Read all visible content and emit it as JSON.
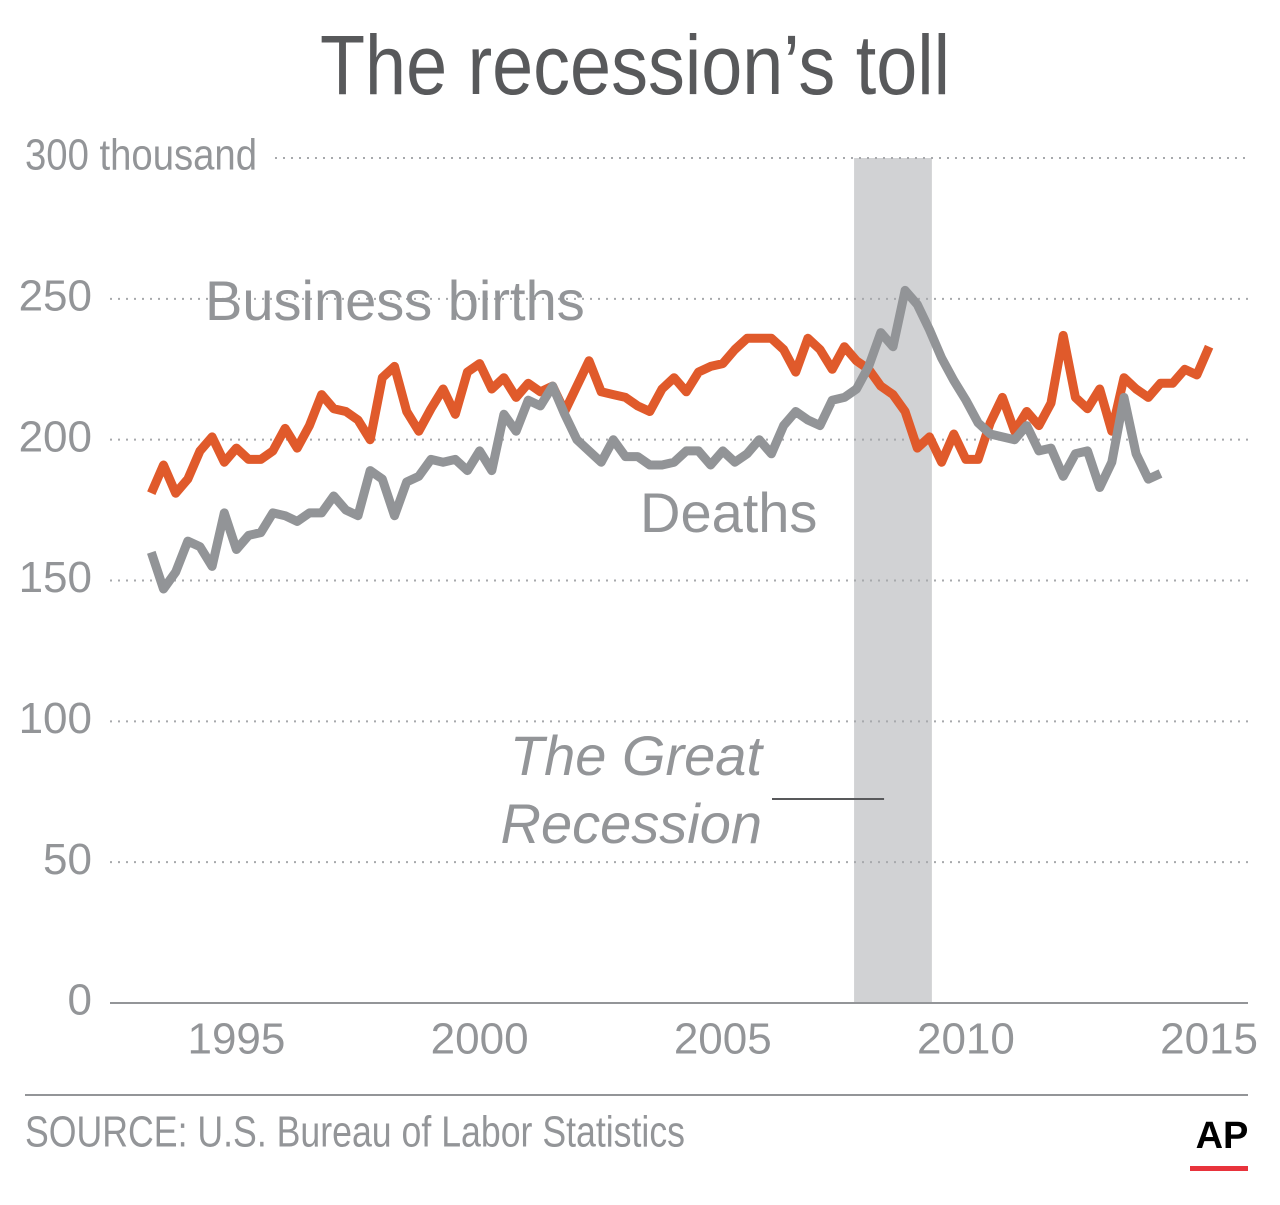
{
  "chart_data": {
    "type": "line",
    "title": "The recession’s toll",
    "source": "SOURCE: U.S. Bureau of Labor Statistics",
    "logo": "AP",
    "x": [
      1993.25,
      1993.5,
      1993.75,
      1994,
      1994.25,
      1994.5,
      1994.75,
      1995,
      1995.25,
      1995.5,
      1995.75,
      1996,
      1996.25,
      1996.5,
      1996.75,
      1997,
      1997.25,
      1997.5,
      1997.75,
      1998,
      1998.25,
      1998.5,
      1998.75,
      1999,
      1999.25,
      1999.5,
      1999.75,
      2000,
      2000.25,
      2000.5,
      2000.75,
      2001,
      2001.25,
      2001.5,
      2001.75,
      2002,
      2002.25,
      2002.5,
      2002.75,
      2003,
      2003.25,
      2003.5,
      2003.75,
      2004,
      2004.25,
      2004.5,
      2004.75,
      2005,
      2005.25,
      2005.5,
      2005.75,
      2006,
      2006.25,
      2006.5,
      2006.75,
      2007,
      2007.25,
      2007.5,
      2007.75,
      2008,
      2008.25,
      2008.5,
      2008.75,
      2009,
      2009.25,
      2009.5,
      2009.75,
      2010,
      2010.25,
      2010.5,
      2010.75,
      2011,
      2011.25,
      2011.5,
      2011.75,
      2012,
      2012.25,
      2012.5,
      2012.75,
      2013,
      2013.25,
      2013.5,
      2013.75,
      2014,
      2014.25,
      2014.5,
      2014.75,
      2015
    ],
    "series": [
      {
        "name": "Business births",
        "color": "#e05a2b",
        "values": [
          181,
          191,
          181,
          186,
          196,
          201,
          192,
          197,
          193,
          193,
          196,
          204,
          197,
          205,
          216,
          211,
          210,
          207,
          200,
          222,
          226,
          210,
          203,
          211,
          218,
          209,
          224,
          227,
          218,
          222,
          215,
          220,
          217,
          219,
          210,
          219,
          228,
          217,
          216,
          215,
          212,
          210,
          218,
          222,
          217,
          224,
          226,
          227,
          232,
          236,
          236,
          236,
          232,
          224,
          236,
          232,
          225,
          233,
          228,
          225,
          219,
          216,
          210,
          197,
          201,
          192,
          202,
          193,
          193,
          206,
          215,
          203,
          210,
          205,
          213,
          237,
          215,
          211,
          218,
          203,
          222,
          218,
          215,
          220,
          220,
          225,
          223,
          233
        ]
      },
      {
        "name": "Deaths",
        "color": "#929497",
        "values": [
          160,
          147,
          153,
          164,
          162,
          155,
          174,
          161,
          166,
          167,
          174,
          173,
          171,
          174,
          174,
          180,
          175,
          173,
          189,
          186,
          173,
          185,
          187,
          193,
          192,
          193,
          189,
          196,
          189,
          209,
          203,
          214,
          212,
          219,
          209,
          200,
          196,
          192,
          200,
          194,
          194,
          191,
          191,
          192,
          196,
          196,
          191,
          196,
          192,
          195,
          200,
          195,
          205,
          210,
          207,
          205,
          214,
          215,
          218,
          226,
          238,
          233,
          253,
          248,
          239,
          229,
          221,
          214,
          206,
          202,
          201,
          200,
          205,
          196,
          197,
          187,
          195,
          196,
          183,
          192,
          215,
          195,
          186,
          188,
          null,
          null,
          null,
          null
        ]
      }
    ],
    "recession": {
      "range": [
        2007.7,
        2009.3
      ],
      "label": [
        "The Great",
        "Recession"
      ]
    },
    "xlim": [
      1992.4,
      2015.8
    ],
    "xticks": [
      1995,
      2000,
      2005,
      2010,
      2015
    ],
    "ylim": [
      0,
      300
    ],
    "yticks": [
      0,
      50,
      100,
      150,
      200,
      250,
      {
        "value": 300,
        "label": "300 thousand"
      }
    ],
    "grid": true
  }
}
